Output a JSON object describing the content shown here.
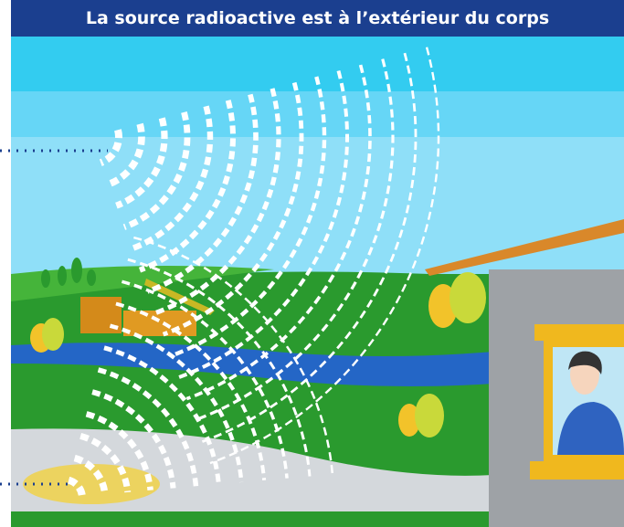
{
  "header": {
    "title": "La source radioactive est à l’extérieur du corps"
  }
}
